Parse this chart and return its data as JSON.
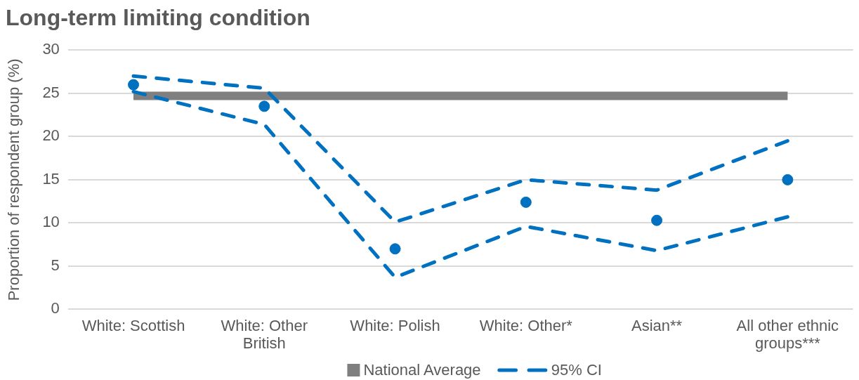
{
  "chart_data": {
    "type": "line",
    "title": "Long-term limiting condition",
    "ylabel": "Proportion of respondent group (%)",
    "categories": [
      "White: Scottish",
      "White: Other British",
      "White: Polish",
      "White: Other*",
      "Asian**",
      "All other ethnic groups***"
    ],
    "ylim": [
      0,
      30
    ],
    "yticks": [
      0,
      5,
      10,
      15,
      20,
      25,
      30
    ],
    "grid": "y",
    "legend": "bottom",
    "series": [
      {
        "name": "National Average",
        "color": "#7f7f7f",
        "values": [
          24.7,
          24.7,
          24.7,
          24.7,
          24.7,
          24.7
        ]
      },
      {
        "name": "95% CI",
        "color": "#0070c0",
        "line_style": "dashed",
        "values": [
          27.0,
          25.6,
          10.1,
          15.0,
          13.8,
          19.5
        ]
      },
      {
        "color": "#0070c0",
        "line_style": "dashed",
        "values": [
          25.2,
          21.4,
          3.7,
          9.6,
          6.8,
          10.7
        ]
      },
      {
        "type": "scatter",
        "color": "#0070c0",
        "marker": "circle",
        "values": [
          26.0,
          23.5,
          7.0,
          12.4,
          10.3,
          15.0
        ]
      }
    ]
  }
}
